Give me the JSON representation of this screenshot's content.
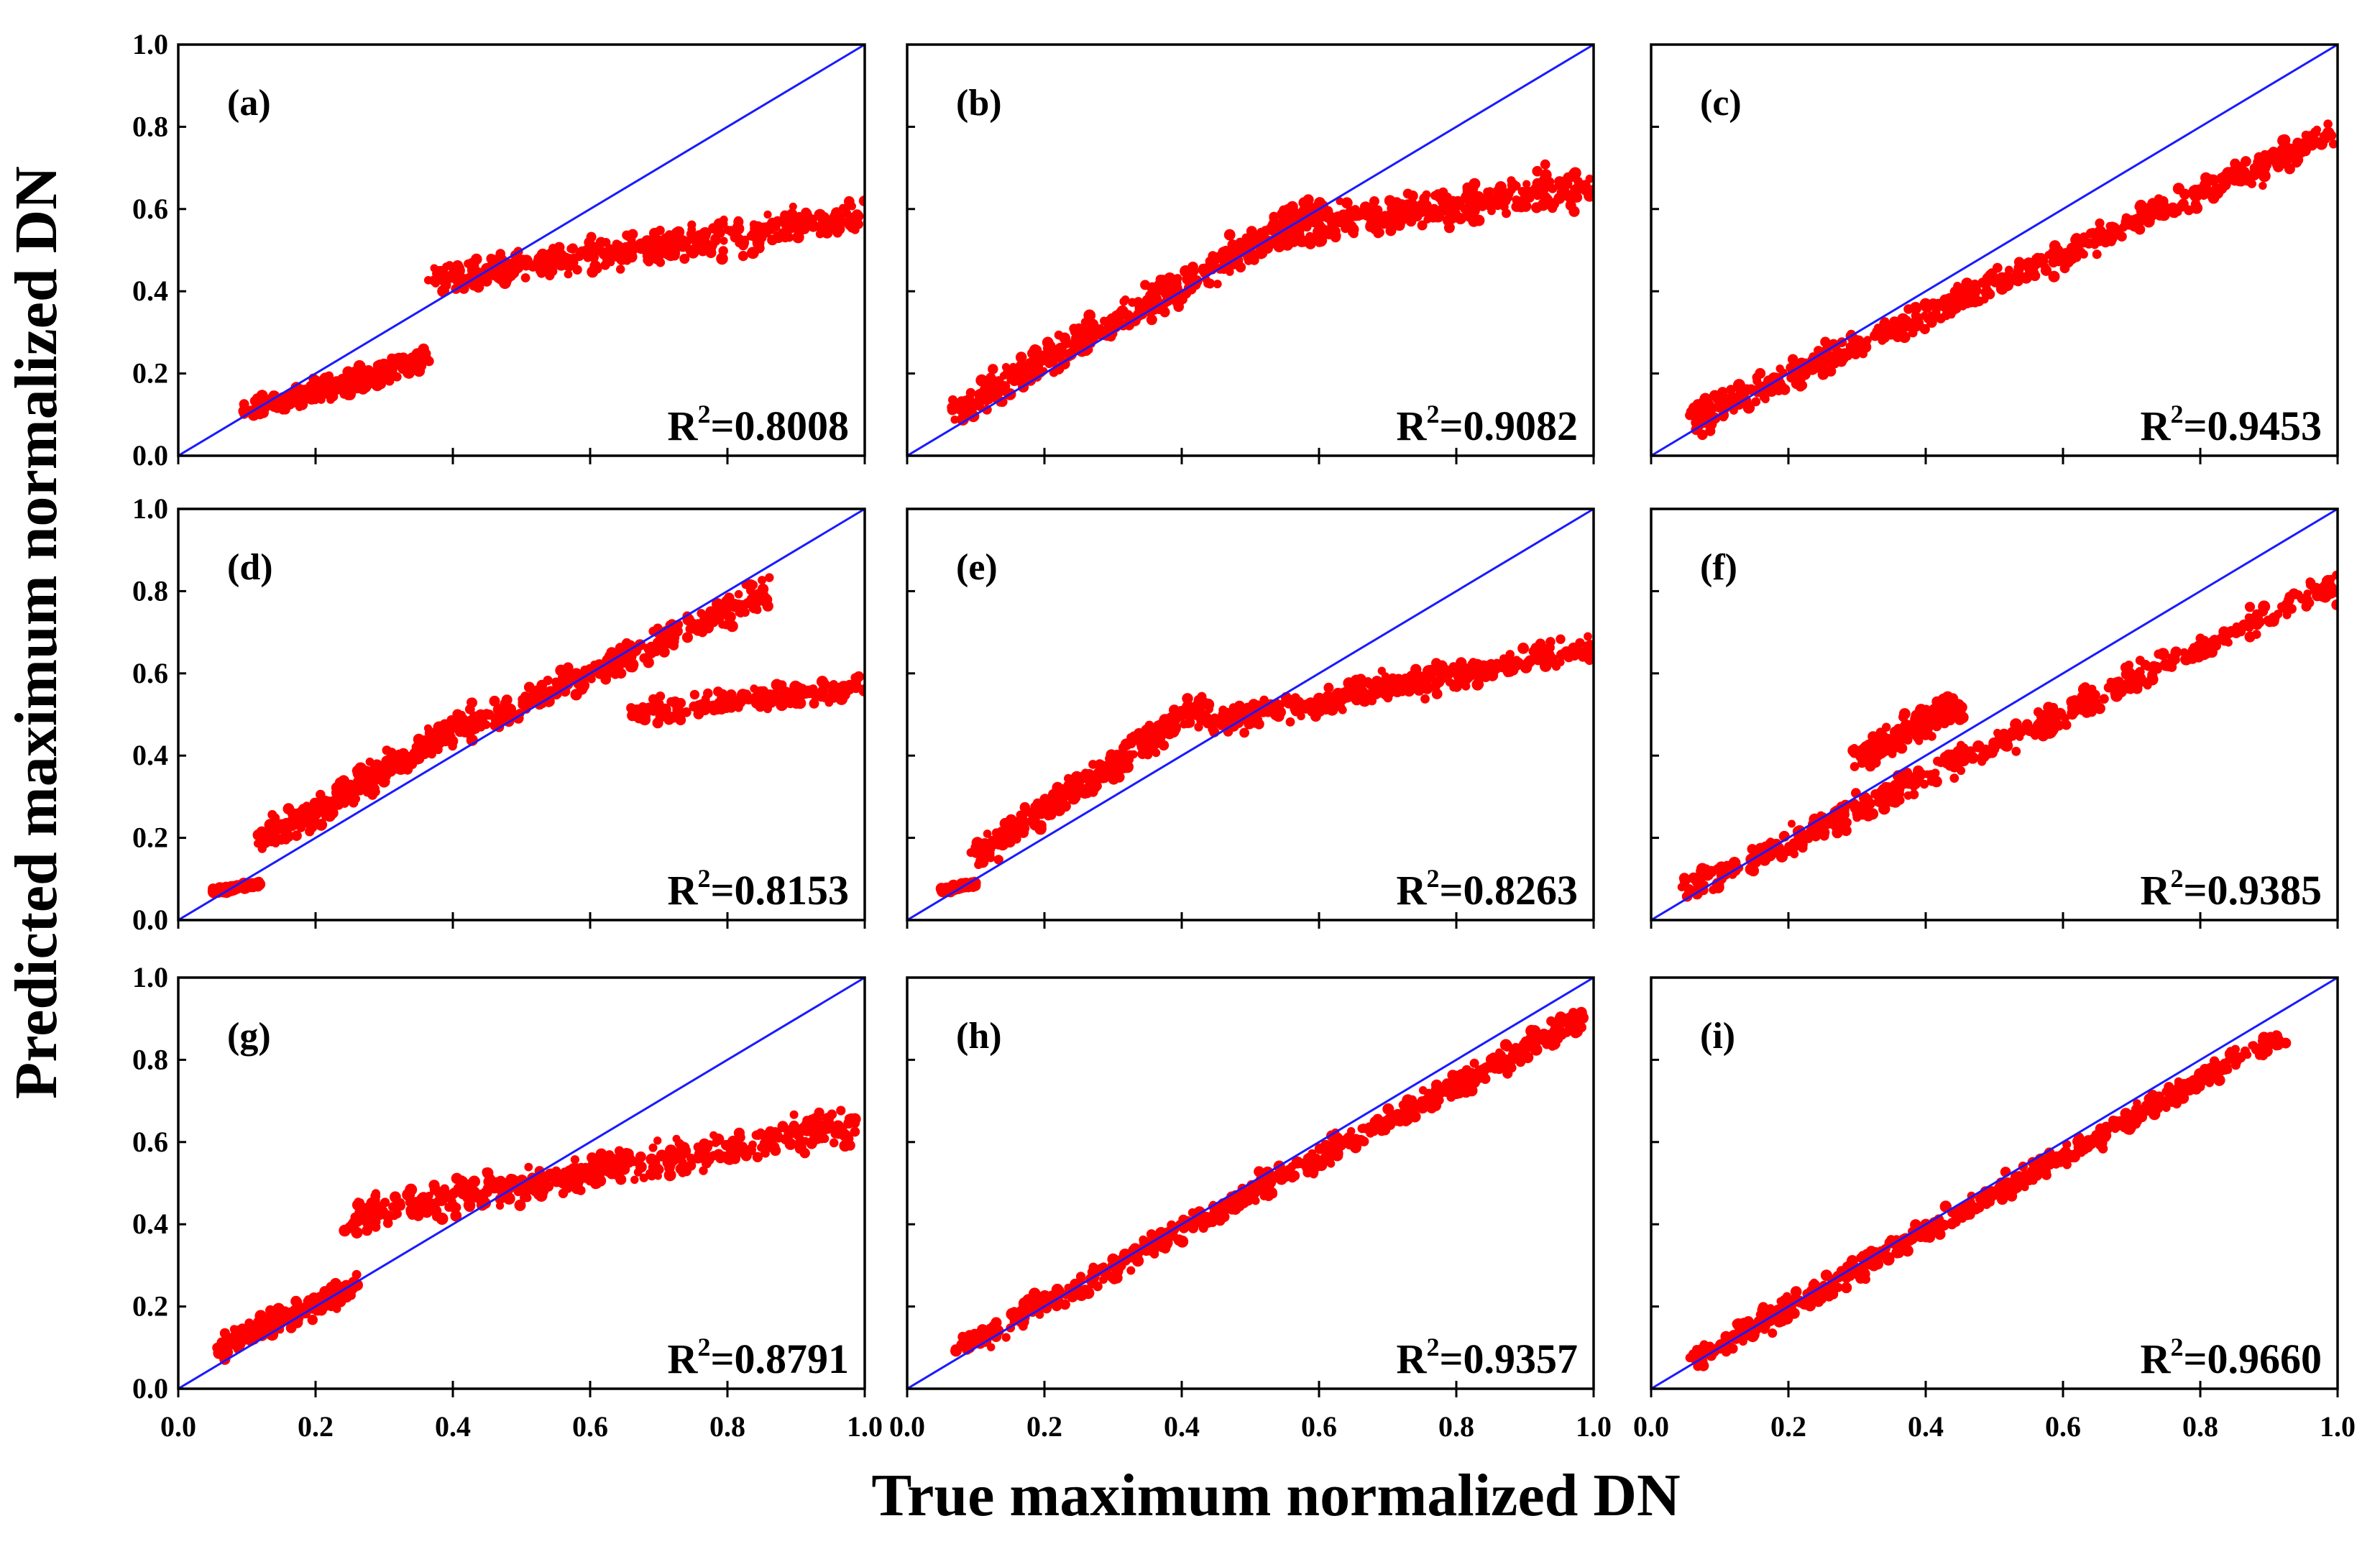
{
  "chart_data": {
    "type": "scatter",
    "xlabel": "True maximum normalized DN",
    "ylabel": "Predicted maximum normalized DN",
    "xlim": [
      0.0,
      1.0
    ],
    "ylim": [
      0.0,
      1.0
    ],
    "xticks": [
      "0.0",
      "0.2",
      "0.4",
      "0.6",
      "0.8",
      "1.0"
    ],
    "yticks": [
      "0.0",
      "0.2",
      "0.4",
      "0.6",
      "0.8",
      "1.0"
    ],
    "point_color": "#ff0000",
    "line_color": "#1a1aff",
    "reference_line": "y = x",
    "panels": [
      {
        "label": "(a)",
        "r2_label": "R",
        "r2_sup": "2",
        "r2_value": "=0.8008",
        "clusters": [
          {
            "x0": 0.1,
            "x1": 0.36,
            "y0": 0.11,
            "y1": 0.23,
            "spread": 0.04,
            "density": 1.0
          },
          {
            "x0": 0.37,
            "x1": 1.0,
            "y0": 0.43,
            "y1": 0.58,
            "spread": 0.06,
            "density": 1.6
          }
        ]
      },
      {
        "label": "(b)",
        "r2_label": "R",
        "r2_sup": "2",
        "r2_value": "=0.9082",
        "clusters": [
          {
            "x0": 0.07,
            "x1": 0.6,
            "y0": 0.11,
            "y1": 0.6,
            "spread": 0.06,
            "density": 1.6
          },
          {
            "x0": 0.55,
            "x1": 1.0,
            "y0": 0.55,
            "y1": 0.66,
            "spread": 0.07,
            "density": 1.2
          }
        ]
      },
      {
        "label": "(c)",
        "r2_label": "R",
        "r2_sup": "2",
        "r2_value": "=0.9453",
        "clusters": [
          {
            "x0": 0.06,
            "x1": 1.0,
            "y0": 0.09,
            "y1": 0.79,
            "spread": 0.05,
            "density": 2.2
          }
        ]
      },
      {
        "label": "(d)",
        "r2_label": "R",
        "r2_sup": "2",
        "r2_value": "=0.8153",
        "clusters": [
          {
            "x0": 0.05,
            "x1": 0.12,
            "y0": 0.07,
            "y1": 0.09,
            "spread": 0.01,
            "density": 0.5
          },
          {
            "x0": 0.12,
            "x1": 0.44,
            "y0": 0.19,
            "y1": 0.5,
            "spread": 0.05,
            "density": 1.3
          },
          {
            "x0": 0.44,
            "x1": 0.86,
            "y0": 0.48,
            "y1": 0.8,
            "spread": 0.05,
            "density": 1.0
          },
          {
            "x0": 0.66,
            "x1": 1.0,
            "y0": 0.5,
            "y1": 0.57,
            "spread": 0.04,
            "density": 0.7
          }
        ]
      },
      {
        "label": "(e)",
        "r2_label": "R",
        "r2_sup": "2",
        "r2_value": "=0.8263",
        "clusters": [
          {
            "x0": 0.05,
            "x1": 0.1,
            "y0": 0.07,
            "y1": 0.09,
            "spread": 0.01,
            "density": 0.5
          },
          {
            "x0": 0.1,
            "x1": 0.43,
            "y0": 0.16,
            "y1": 0.52,
            "spread": 0.05,
            "density": 1.2
          },
          {
            "x0": 0.43,
            "x1": 1.0,
            "y0": 0.48,
            "y1": 0.66,
            "spread": 0.05,
            "density": 1.3
          }
        ]
      },
      {
        "label": "(f)",
        "r2_label": "R",
        "r2_sup": "2",
        "r2_value": "=0.9385",
        "clusters": [
          {
            "x0": 0.05,
            "x1": 1.0,
            "y0": 0.07,
            "y1": 0.82,
            "spread": 0.05,
            "density": 2.0
          },
          {
            "x0": 0.3,
            "x1": 0.45,
            "y0": 0.4,
            "y1": 0.52,
            "spread": 0.05,
            "density": 0.6
          }
        ]
      },
      {
        "label": "(g)",
        "r2_label": "R",
        "r2_sup": "2",
        "r2_value": "=0.8791",
        "clusters": [
          {
            "x0": 0.06,
            "x1": 0.26,
            "y0": 0.1,
            "y1": 0.25,
            "spread": 0.04,
            "density": 0.9
          },
          {
            "x0": 0.25,
            "x1": 0.98,
            "y0": 0.42,
            "y1": 0.64,
            "spread": 0.06,
            "density": 1.8
          }
        ]
      },
      {
        "label": "(h)",
        "r2_label": "R",
        "r2_sup": "2",
        "r2_value": "=0.9357",
        "clusters": [
          {
            "x0": 0.08,
            "x1": 0.98,
            "y0": 0.1,
            "y1": 0.9,
            "spread": 0.045,
            "density": 2.1
          }
        ]
      },
      {
        "label": "(i)",
        "r2_label": "R",
        "r2_sup": "2",
        "r2_value": "=0.9660",
        "clusters": [
          {
            "x0": 0.06,
            "x1": 0.92,
            "y0": 0.07,
            "y1": 0.86,
            "spread": 0.04,
            "density": 2.1
          }
        ]
      }
    ]
  }
}
